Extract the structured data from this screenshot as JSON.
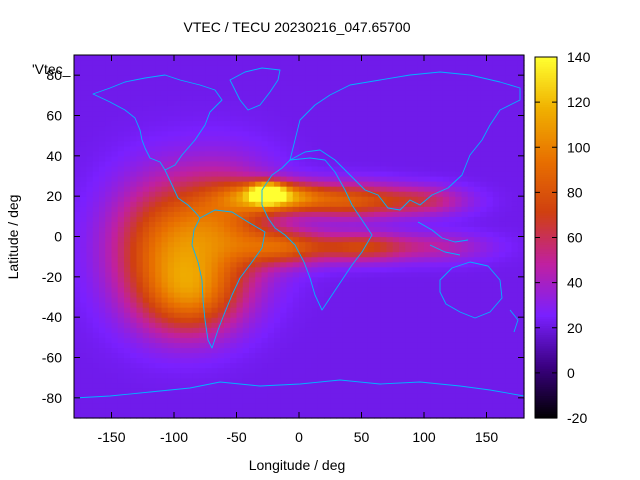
{
  "chart_data": {
    "type": "heatmap",
    "title": "VTEC / TECU 20230216_047.65700",
    "xlabel": "Longitude / deg",
    "ylabel": "Latitude / deg",
    "xlim": [
      -180,
      180
    ],
    "ylim": [
      -90,
      90
    ],
    "xticks": [
      -150,
      -100,
      -50,
      0,
      50,
      100,
      150
    ],
    "yticks": [
      -80,
      -60,
      -40,
      -20,
      0,
      20,
      40,
      60,
      80
    ],
    "legend_label": "'Vtec_",
    "colorbar": {
      "range": [
        -20,
        140
      ],
      "ticks": [
        -20,
        0,
        20,
        40,
        60,
        80,
        100,
        120,
        140
      ],
      "palette": [
        "#000000",
        "#3a0080",
        "#7a20ff",
        "#c020a0",
        "#d04010",
        "#e87000",
        "#f0b000",
        "#ffff30"
      ]
    },
    "background_value": 22,
    "features": [
      {
        "name": "main-anomaly-west",
        "lon": -110,
        "lat": -5,
        "peak": 80,
        "sigma_lon": 30,
        "sigma_lat": 22
      },
      {
        "name": "main-anomaly-south",
        "lon": -85,
        "lat": -30,
        "peak": 75,
        "sigma_lon": 28,
        "sigma_lat": 14
      },
      {
        "name": "main-anomaly-central",
        "lon": -60,
        "lat": 5,
        "peak": 80,
        "sigma_lon": 30,
        "sigma_lat": 20
      },
      {
        "name": "north-crest",
        "lon": -20,
        "lat": 20,
        "peak": 105,
        "sigma_lon": 25,
        "sigma_lat": 5
      },
      {
        "name": "north-crest-core",
        "lon": -25,
        "lat": 22,
        "peak": 125,
        "sigma_lon": 8,
        "sigma_lat": 3
      },
      {
        "name": "north-crest-east",
        "lon": 40,
        "lat": 18,
        "peak": 80,
        "sigma_lon": 30,
        "sigma_lat": 6
      },
      {
        "name": "north-crest-far-east",
        "lon": 100,
        "lat": 18,
        "peak": 55,
        "sigma_lon": 25,
        "sigma_lat": 5
      },
      {
        "name": "south-crest-atlantic",
        "lon": -10,
        "lat": -5,
        "peak": 75,
        "sigma_lon": 25,
        "sigma_lat": 6
      },
      {
        "name": "south-crest-africa",
        "lon": 50,
        "lat": -5,
        "peak": 70,
        "sigma_lon": 25,
        "sigma_lat": 5
      },
      {
        "name": "south-crest-east",
        "lon": 110,
        "lat": -5,
        "peak": 45,
        "sigma_lon": 30,
        "sigma_lat": 5
      }
    ]
  }
}
